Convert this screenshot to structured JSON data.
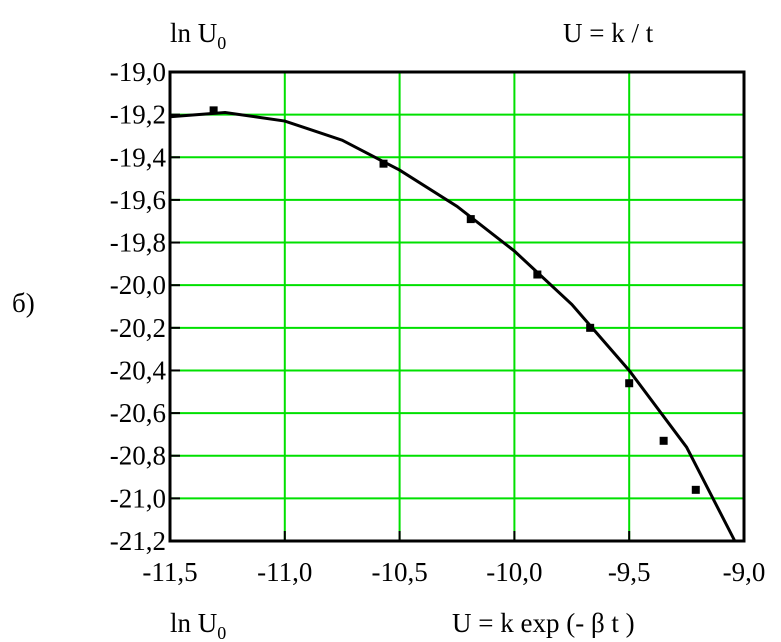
{
  "chart_data": {
    "type": "scatter",
    "annotations": {
      "top_left": {
        "text": "ln U",
        "sub": "0"
      },
      "top_right": "U = k / t",
      "side": "б)",
      "bottom_left": {
        "text": "ln U",
        "sub": "0"
      },
      "bottom_right": "U = k exp (-  β t )"
    },
    "xlim": [
      -11.5,
      -9.0
    ],
    "xticks": [
      {
        "value": -11.5,
        "label": "-11,5"
      },
      {
        "value": -11.0,
        "label": "-11,0"
      },
      {
        "value": -10.5,
        "label": "-10,5"
      },
      {
        "value": -10.0,
        "label": "-10,0"
      },
      {
        "value": -9.5,
        "label": "-9,5"
      },
      {
        "value": -9.0,
        "label": "-9,0"
      }
    ],
    "ylim": [
      -21.2,
      -19.0
    ],
    "yticks": [
      {
        "value": -19.0,
        "label": "-19,0"
      },
      {
        "value": -19.2,
        "label": "-19,2"
      },
      {
        "value": -19.4,
        "label": "-19,4"
      },
      {
        "value": -19.6,
        "label": "-19,6"
      },
      {
        "value": -19.8,
        "label": "-19,8"
      },
      {
        "value": -20.0,
        "label": "-20,0"
      },
      {
        "value": -20.2,
        "label": "-20,2"
      },
      {
        "value": -20.4,
        "label": "-20,4"
      },
      {
        "value": -20.6,
        "label": "-20,6"
      },
      {
        "value": -20.8,
        "label": "-20,8"
      },
      {
        "value": -21.0,
        "label": "-21,0"
      },
      {
        "value": -21.2,
        "label": "-21,2"
      }
    ],
    "grid": true,
    "grid_color": "#00e000",
    "points": {
      "color": "#000000",
      "x": [
        -11.31,
        -10.57,
        -10.19,
        -9.9,
        -9.67,
        -9.5,
        -9.35,
        -9.21
      ],
      "values": [
        -19.18,
        -19.43,
        -19.69,
        -19.95,
        -20.2,
        -20.46,
        -20.73,
        -20.96
      ]
    },
    "fit": {
      "type": "line",
      "color": "#000000",
      "x": [
        -11.5,
        -11.26,
        -11.0,
        -10.75,
        -10.5,
        -10.25,
        -10.0,
        -9.75,
        -9.5,
        -9.25,
        -9.04
      ],
      "values": [
        -19.21,
        -19.19,
        -19.23,
        -19.32,
        -19.46,
        -19.63,
        -19.84,
        -20.09,
        -20.4,
        -20.76,
        -21.2
      ]
    }
  }
}
